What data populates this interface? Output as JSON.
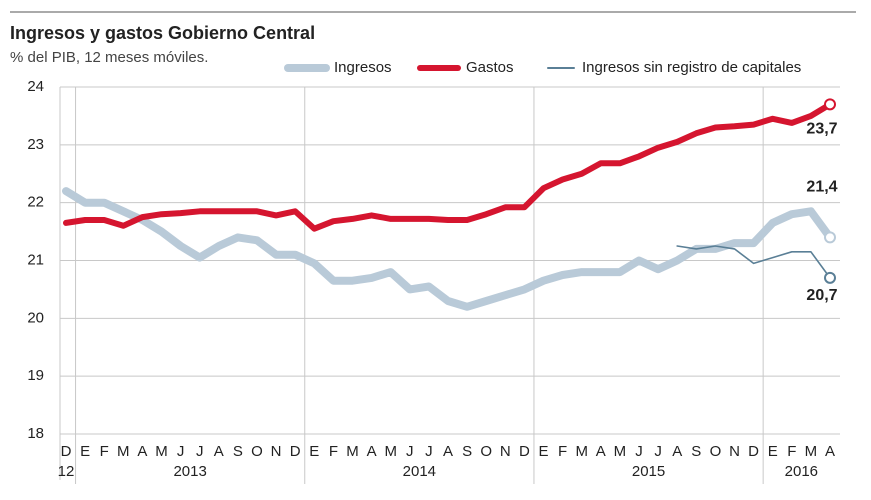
{
  "chart_data": {
    "type": "line",
    "title": "Ingresos y gastos Gobierno Central",
    "subtitle": "% del PIB, 12 meses móviles.",
    "categories": [
      "D",
      "E",
      "F",
      "M",
      "A",
      "M",
      "J",
      "J",
      "A",
      "S",
      "O",
      "N",
      "D",
      "E",
      "F",
      "M",
      "A",
      "M",
      "J",
      "J",
      "A",
      "S",
      "O",
      "N",
      "D",
      "E",
      "F",
      "M",
      "A",
      "M",
      "J",
      "J",
      "A",
      "S",
      "O",
      "N",
      "D",
      "E",
      "F",
      "M",
      "A"
    ],
    "groups": [
      {
        "label": "12",
        "count": 1
      },
      {
        "label": "2013",
        "count": 12
      },
      {
        "label": "2014",
        "count": 12
      },
      {
        "label": "2015",
        "count": 12
      },
      {
        "label": "2016",
        "count": 4
      }
    ],
    "ylim": [
      18,
      24
    ],
    "yticks": [
      18,
      19,
      20,
      21,
      22,
      23,
      24
    ],
    "grid": true,
    "legend": "top-right",
    "series": [
      {
        "name": "Ingresos",
        "color": "#b9cad8",
        "values": [
          22.2,
          22.0,
          22.0,
          21.85,
          21.7,
          21.5,
          21.25,
          21.05,
          21.25,
          21.4,
          21.35,
          21.1,
          21.1,
          20.95,
          20.65,
          20.65,
          20.7,
          20.8,
          20.5,
          20.55,
          20.3,
          20.2,
          20.3,
          20.4,
          20.5,
          20.65,
          20.75,
          20.8,
          20.8,
          20.8,
          21.0,
          20.85,
          21.0,
          21.2,
          21.2,
          21.3,
          21.3,
          21.65,
          21.8,
          21.85,
          21.4
        ],
        "value_labels": [
          null,
          null,
          null,
          null,
          null,
          null,
          null,
          null,
          null,
          null,
          null,
          null,
          null,
          null,
          null,
          null,
          null,
          null,
          null,
          null,
          null,
          null,
          null,
          null,
          null,
          null,
          null,
          null,
          null,
          null,
          null,
          null,
          null,
          null,
          null,
          null,
          null,
          null,
          null,
          null,
          "21,4"
        ]
      },
      {
        "name": "Gastos",
        "color": "#d5152f",
        "values": [
          21.65,
          21.7,
          21.7,
          21.6,
          21.75,
          21.8,
          21.82,
          21.85,
          21.85,
          21.85,
          21.85,
          21.78,
          21.85,
          21.55,
          21.68,
          21.72,
          21.78,
          21.72,
          21.72,
          21.72,
          21.7,
          21.7,
          21.8,
          21.92,
          21.92,
          22.25,
          22.4,
          22.5,
          22.68,
          22.68,
          22.8,
          22.95,
          23.05,
          23.2,
          23.3,
          23.32,
          23.35,
          23.45,
          23.38,
          23.5,
          23.7
        ],
        "value_labels": [
          null,
          null,
          null,
          null,
          null,
          null,
          null,
          null,
          null,
          null,
          null,
          null,
          null,
          null,
          null,
          null,
          null,
          null,
          null,
          null,
          null,
          null,
          null,
          null,
          null,
          null,
          null,
          null,
          null,
          null,
          null,
          null,
          null,
          null,
          null,
          null,
          null,
          null,
          null,
          null,
          "23,7"
        ]
      },
      {
        "name": "Ingresos sin registro de capitales",
        "color": "#5a7f96",
        "values": [
          null,
          null,
          null,
          null,
          null,
          null,
          null,
          null,
          null,
          null,
          null,
          null,
          null,
          null,
          null,
          null,
          null,
          null,
          null,
          null,
          null,
          null,
          null,
          null,
          null,
          null,
          null,
          null,
          null,
          null,
          null,
          null,
          21.25,
          21.2,
          21.25,
          21.2,
          20.95,
          21.05,
          21.15,
          21.15,
          20.7
        ],
        "value_labels": [
          null,
          null,
          null,
          null,
          null,
          null,
          null,
          null,
          null,
          null,
          null,
          null,
          null,
          null,
          null,
          null,
          null,
          null,
          null,
          null,
          null,
          null,
          null,
          null,
          null,
          null,
          null,
          null,
          null,
          null,
          null,
          null,
          null,
          null,
          null,
          null,
          null,
          null,
          null,
          null,
          "20,7"
        ]
      }
    ]
  }
}
